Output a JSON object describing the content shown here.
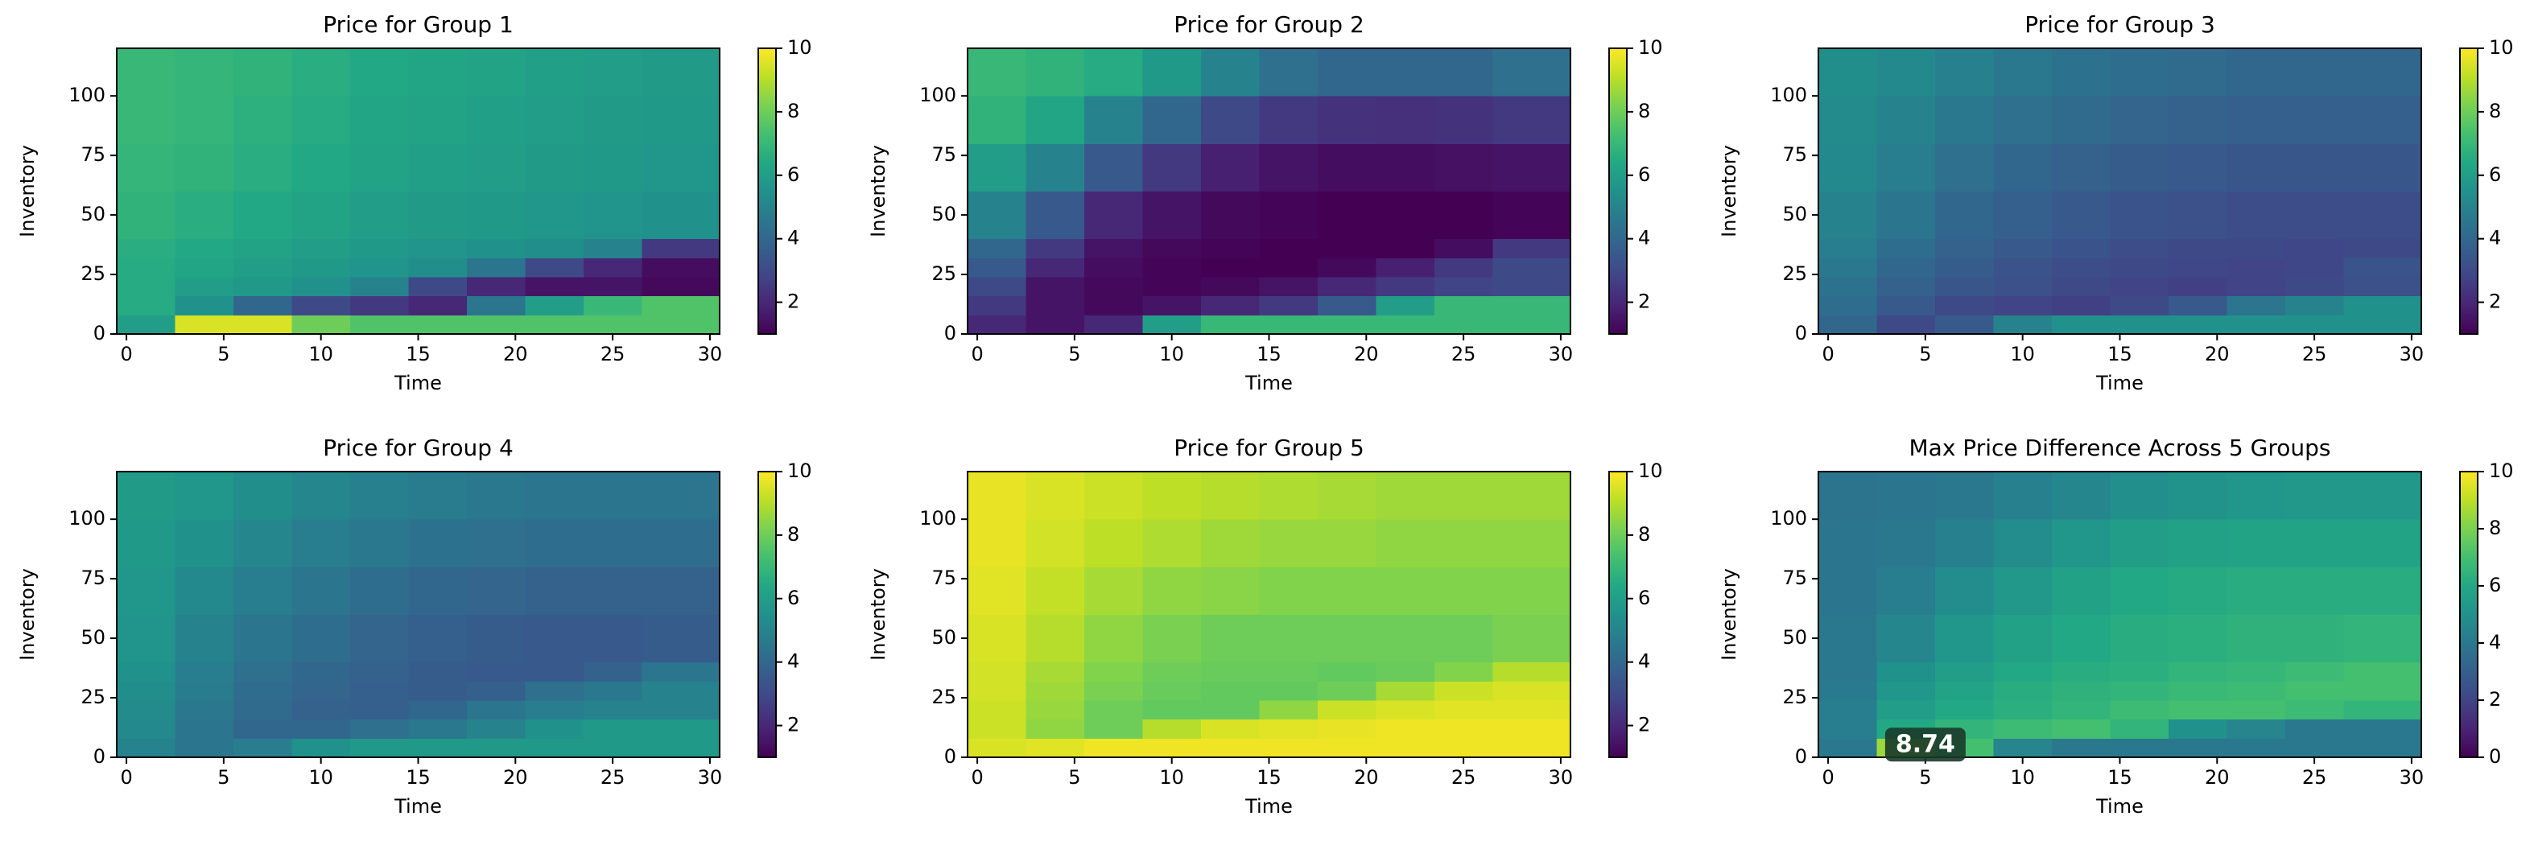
{
  "chart_data": [
    {
      "type": "heatmap",
      "title": "Price for Group 1",
      "xlabel": "Time",
      "ylabel": "Inventory",
      "colormap": "viridis",
      "x_edges": [
        -0.5,
        2.5,
        5.5,
        8.5,
        11.5,
        14.5,
        17.5,
        20.5,
        23.5,
        26.5,
        30.5
      ],
      "y_edges": [
        0,
        8,
        16,
        24,
        32,
        40,
        60,
        80,
        100,
        120
      ],
      "values": [
        [
          6,
          9.5,
          9.5,
          8,
          7.5,
          7.5,
          7.5,
          7.5,
          7.5,
          7.5
        ],
        [
          6.5,
          5.5,
          4,
          3,
          2.5,
          2,
          4.5,
          6,
          7,
          7.5
        ],
        [
          6.5,
          6,
          5.8,
          5.5,
          5,
          3,
          2,
          1.5,
          1.5,
          1.2
        ],
        [
          6.5,
          6.3,
          6,
          5.8,
          5.6,
          5.4,
          4.5,
          3,
          2,
          1.3
        ],
        [
          6.6,
          6.4,
          6.2,
          6,
          5.8,
          5.6,
          5.5,
          5.4,
          5,
          2.5
        ],
        [
          6.8,
          6.6,
          6.4,
          6.2,
          6,
          5.9,
          5.8,
          5.7,
          5.6,
          5.5
        ],
        [
          6.9,
          6.8,
          6.6,
          6.4,
          6.2,
          6.1,
          6,
          5.9,
          5.8,
          5.7
        ],
        [
          7,
          6.9,
          6.7,
          6.5,
          6.3,
          6.2,
          6.1,
          6,
          5.9,
          5.8
        ],
        [
          7,
          6.9,
          6.8,
          6.6,
          6.4,
          6.3,
          6.2,
          6.1,
          6,
          5.9
        ]
      ],
      "xlim": [
        -0.5,
        30.5
      ],
      "ylim": [
        0,
        120
      ],
      "xticks": [
        0,
        5,
        10,
        15,
        20,
        25,
        30
      ],
      "yticks": [
        0,
        25,
        50,
        75,
        100
      ],
      "clim": [
        1,
        10
      ],
      "cticks": [
        2,
        4,
        6,
        8,
        10
      ]
    },
    {
      "type": "heatmap",
      "title": "Price for Group 2",
      "xlabel": "Time",
      "ylabel": "Inventory",
      "colormap": "viridis",
      "x_edges": [
        -0.5,
        2.5,
        5.5,
        8.5,
        11.5,
        14.5,
        17.5,
        20.5,
        23.5,
        26.5,
        30.5
      ],
      "y_edges": [
        0,
        8,
        16,
        24,
        32,
        40,
        60,
        80,
        100,
        120
      ],
      "values": [
        [
          2,
          1.5,
          2,
          6,
          7,
          7,
          7,
          7,
          7,
          7
        ],
        [
          2.5,
          1.5,
          1.2,
          1.5,
          2,
          2.5,
          3.5,
          6,
          7,
          7
        ],
        [
          3,
          1.5,
          1.2,
          1.1,
          1.2,
          1.5,
          2,
          2.5,
          2.8,
          3
        ],
        [
          3.5,
          2,
          1.3,
          1.1,
          1,
          1,
          1.2,
          1.8,
          2.5,
          3
        ],
        [
          4,
          2.5,
          1.5,
          1.2,
          1.1,
          1,
          1,
          1,
          1.3,
          2.5
        ],
        [
          5,
          3.5,
          2,
          1.5,
          1.2,
          1.1,
          1,
          1,
          1,
          1.1
        ],
        [
          6,
          5,
          3.5,
          2.5,
          1.8,
          1.5,
          1.3,
          1.3,
          1.4,
          1.5
        ],
        [
          6.8,
          6.3,
          5,
          4,
          3,
          2.5,
          2.3,
          2.2,
          2.3,
          2.5
        ],
        [
          7,
          6.8,
          6.5,
          5.8,
          5,
          4.3,
          4,
          4,
          4,
          4.3
        ]
      ],
      "xlim": [
        -0.5,
        30.5
      ],
      "ylim": [
        0,
        120
      ],
      "xticks": [
        0,
        5,
        10,
        15,
        20,
        25,
        30
      ],
      "yticks": [
        0,
        25,
        50,
        75,
        100
      ],
      "clim": [
        1,
        10
      ],
      "cticks": [
        2,
        4,
        6,
        8,
        10
      ]
    },
    {
      "type": "heatmap",
      "title": "Price for Group 3",
      "xlabel": "Time",
      "ylabel": "Inventory",
      "colormap": "viridis",
      "x_edges": [
        -0.5,
        2.5,
        5.5,
        8.5,
        11.5,
        14.5,
        17.5,
        20.5,
        23.5,
        26.5,
        30.5
      ],
      "y_edges": [
        0,
        8,
        16,
        24,
        32,
        40,
        60,
        80,
        100,
        120
      ],
      "values": [
        [
          4,
          3,
          3.5,
          5,
          5.5,
          5.5,
          5.5,
          5.5,
          5.5,
          5.5
        ],
        [
          4.2,
          3.5,
          3,
          2.8,
          2.7,
          3,
          3.5,
          4.5,
          5,
          5.5
        ],
        [
          4.4,
          3.8,
          3.4,
          3.2,
          3,
          2.8,
          2.7,
          2.8,
          3,
          3.2
        ],
        [
          4.6,
          4,
          3.6,
          3.3,
          3.1,
          3,
          2.9,
          2.8,
          2.9,
          3.3
        ],
        [
          4.8,
          4.2,
          3.8,
          3.5,
          3.3,
          3.1,
          3,
          3,
          2.9,
          3
        ],
        [
          5,
          4.5,
          4,
          3.7,
          3.5,
          3.3,
          3.2,
          3.1,
          3.1,
          3.1
        ],
        [
          5.2,
          4.8,
          4.3,
          4,
          3.8,
          3.6,
          3.5,
          3.4,
          3.4,
          3.4
        ],
        [
          5.3,
          5,
          4.6,
          4.3,
          4.1,
          3.9,
          3.8,
          3.7,
          3.7,
          3.7
        ],
        [
          5.4,
          5.2,
          4.9,
          4.6,
          4.4,
          4.2,
          4.1,
          4,
          4,
          4
        ]
      ],
      "xlim": [
        -0.5,
        30.5
      ],
      "ylim": [
        0,
        120
      ],
      "xticks": [
        0,
        5,
        10,
        15,
        20,
        25,
        30
      ],
      "yticks": [
        0,
        25,
        50,
        75,
        100
      ],
      "clim": [
        1,
        10
      ],
      "cticks": [
        2,
        4,
        6,
        8,
        10
      ]
    },
    {
      "type": "heatmap",
      "title": "Price for Group 4",
      "xlabel": "Time",
      "ylabel": "Inventory",
      "colormap": "viridis",
      "x_edges": [
        -0.5,
        2.5,
        5.5,
        8.5,
        11.5,
        14.5,
        17.5,
        20.5,
        23.5,
        26.5,
        30.5
      ],
      "y_edges": [
        0,
        8,
        16,
        24,
        32,
        40,
        60,
        80,
        100,
        120
      ],
      "values": [
        [
          5,
          4.5,
          4.8,
          5.5,
          5.8,
          5.8,
          5.8,
          5.8,
          5.8,
          5.8
        ],
        [
          5.2,
          4.5,
          4,
          4,
          4.3,
          4.6,
          5,
          5.5,
          5.8,
          5.8
        ],
        [
          5.3,
          4.6,
          4.1,
          3.8,
          3.7,
          4,
          4.5,
          4.8,
          5,
          5
        ],
        [
          5.4,
          4.7,
          4.2,
          3.9,
          3.7,
          3.6,
          3.7,
          4.3,
          4.6,
          5
        ],
        [
          5.5,
          4.8,
          4.3,
          4,
          3.8,
          3.6,
          3.5,
          3.5,
          3.8,
          4.5
        ],
        [
          5.6,
          5,
          4.5,
          4.2,
          3.9,
          3.7,
          3.6,
          3.5,
          3.5,
          3.6
        ],
        [
          5.7,
          5.2,
          4.8,
          4.5,
          4.2,
          4,
          3.9,
          3.8,
          3.8,
          3.8
        ],
        [
          5.8,
          5.5,
          5.1,
          4.8,
          4.6,
          4.4,
          4.3,
          4.2,
          4.2,
          4.2
        ],
        [
          5.9,
          5.7,
          5.4,
          5.1,
          4.9,
          4.7,
          4.6,
          4.5,
          4.5,
          4.5
        ]
      ],
      "xlim": [
        -0.5,
        30.5
      ],
      "ylim": [
        0,
        120
      ],
      "xticks": [
        0,
        5,
        10,
        15,
        20,
        25,
        30
      ],
      "yticks": [
        0,
        25,
        50,
        75,
        100
      ],
      "clim": [
        1,
        10
      ],
      "cticks": [
        2,
        4,
        6,
        8,
        10
      ]
    },
    {
      "type": "heatmap",
      "title": "Price for Group 5",
      "xlabel": "Time",
      "ylabel": "Inventory",
      "colormap": "viridis",
      "x_edges": [
        -0.5,
        2.5,
        5.5,
        8.5,
        11.5,
        14.5,
        17.5,
        20.5,
        23.5,
        26.5,
        30.5
      ],
      "y_edges": [
        0,
        8,
        16,
        24,
        32,
        40,
        60,
        80,
        100,
        120
      ],
      "values": [
        [
          9.5,
          9.6,
          9.8,
          9.8,
          9.8,
          9.8,
          9.8,
          9.8,
          9.8,
          9.8
        ],
        [
          9.3,
          8.5,
          8,
          9,
          9.5,
          9.6,
          9.7,
          9.8,
          9.8,
          9.8
        ],
        [
          9.3,
          8.6,
          8,
          7.8,
          7.8,
          8.5,
          9.3,
          9.5,
          9.6,
          9.6
        ],
        [
          9.4,
          8.7,
          8.2,
          7.9,
          7.8,
          7.8,
          8,
          8.8,
          9.3,
          9.5
        ],
        [
          9.4,
          8.8,
          8.3,
          8,
          7.9,
          7.9,
          7.8,
          7.9,
          8.3,
          9
        ],
        [
          9.5,
          9,
          8.5,
          8.2,
          8,
          8,
          8,
          8,
          8,
          8.2
        ],
        [
          9.6,
          9.2,
          8.8,
          8.5,
          8.4,
          8.3,
          8.3,
          8.3,
          8.3,
          8.3
        ],
        [
          9.7,
          9.4,
          9.1,
          8.9,
          8.7,
          8.6,
          8.6,
          8.5,
          8.5,
          8.5
        ],
        [
          9.7,
          9.5,
          9.3,
          9.1,
          9,
          8.9,
          8.8,
          8.7,
          8.7,
          8.7
        ]
      ],
      "xlim": [
        -0.5,
        30.5
      ],
      "ylim": [
        0,
        120
      ],
      "xticks": [
        0,
        5,
        10,
        15,
        20,
        25,
        30
      ],
      "yticks": [
        0,
        25,
        50,
        75,
        100
      ],
      "clim": [
        1,
        10
      ],
      "cticks": [
        2,
        4,
        6,
        8,
        10
      ]
    },
    {
      "type": "heatmap",
      "title": "Max Price Difference Across 5 Groups",
      "xlabel": "Time",
      "ylabel": "Inventory",
      "colormap": "viridis",
      "x_edges": [
        -0.5,
        2.5,
        5.5,
        8.5,
        11.5,
        14.5,
        17.5,
        20.5,
        23.5,
        26.5,
        30.5
      ],
      "y_edges": [
        0,
        8,
        16,
        24,
        32,
        40,
        60,
        80,
        100,
        120
      ],
      "values": [
        [
          4,
          8.5,
          7,
          4.5,
          4,
          4,
          4,
          4,
          4,
          4
        ],
        [
          4.2,
          6,
          6.5,
          6.8,
          7,
          6.5,
          5,
          4.5,
          4,
          4
        ],
        [
          4.2,
          5.5,
          6,
          6.3,
          6.5,
          6.8,
          7,
          7,
          6.8,
          6.5
        ],
        [
          4.1,
          5.2,
          5.8,
          6.2,
          6.4,
          6.5,
          6.7,
          6.8,
          7,
          7
        ],
        [
          4,
          5,
          5.5,
          6,
          6.2,
          6.3,
          6.5,
          6.6,
          6.8,
          7
        ],
        [
          4,
          4.6,
          5.2,
          5.7,
          6,
          6.2,
          6.3,
          6.4,
          6.4,
          6.5
        ],
        [
          3.9,
          4.2,
          4.8,
          5.3,
          5.7,
          6,
          6.1,
          6.2,
          6.2,
          6.2
        ],
        [
          3.9,
          4,
          4.3,
          4.8,
          5.2,
          5.5,
          5.7,
          5.8,
          5.8,
          5.8
        ],
        [
          3.8,
          3.9,
          4,
          4.3,
          4.6,
          4.9,
          5.1,
          5.2,
          5.3,
          5.3
        ]
      ],
      "xlim": [
        -0.5,
        30.5
      ],
      "ylim": [
        0,
        120
      ],
      "xticks": [
        0,
        5,
        10,
        15,
        20,
        25,
        30
      ],
      "yticks": [
        0,
        25,
        50,
        75,
        100
      ],
      "clim": [
        0,
        10
      ],
      "cticks": [
        0,
        2,
        4,
        6,
        8,
        10
      ],
      "annotation": {
        "value": 8.74,
        "x": 5,
        "y": 5
      }
    }
  ]
}
